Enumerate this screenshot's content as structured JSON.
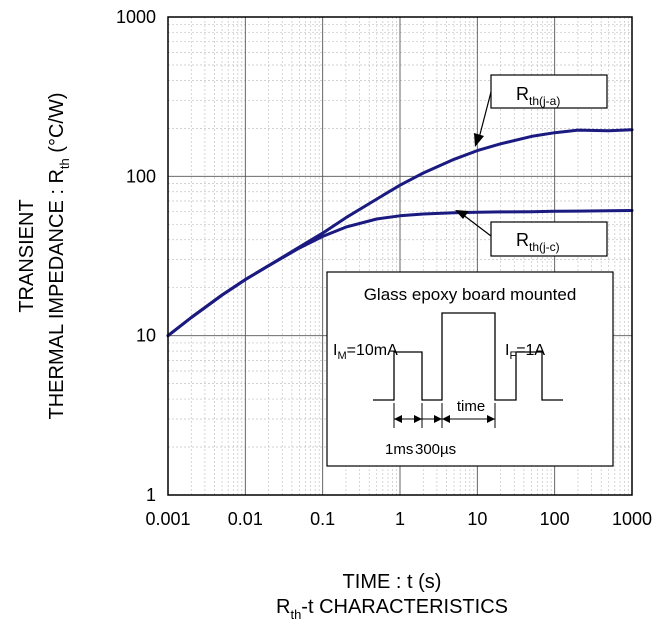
{
  "chart_data": {
    "type": "line",
    "title_main": "R",
    "title_sub": "th",
    "title_rest": "-t CHARACTERISTICS",
    "xlabel": "TIME : t (s)",
    "ylabel_line1": "TRANSIENT",
    "ylabel_line2_main": "THERMAL IMPEDANCE : R",
    "ylabel_line2_sub": "th",
    "ylabel_line2_rest": " (°C/W)",
    "x_scale": "log",
    "y_scale": "log",
    "xlim": [
      0.001,
      1000
    ],
    "ylim": [
      1,
      1000
    ],
    "x_ticks": [
      0.001,
      0.01,
      0.1,
      1,
      10,
      100,
      1000
    ],
    "x_tick_labels": [
      "0.001",
      "0.01",
      "0.1",
      "1",
      "10",
      "100",
      "1000"
    ],
    "y_ticks": [
      1,
      10,
      100,
      1000
    ],
    "y_tick_labels": [
      "1",
      "10",
      "100",
      "1000"
    ],
    "grid": true,
    "line_color": "#1a1a80",
    "series": [
      {
        "name_main": "R",
        "name_sub": "th(j-a)",
        "x": [
          0.001,
          0.002,
          0.005,
          0.01,
          0.02,
          0.05,
          0.1,
          0.2,
          0.5,
          1,
          2,
          5,
          10,
          20,
          50,
          100,
          200,
          500,
          1000
        ],
        "y": [
          10,
          13,
          18,
          22.5,
          27.5,
          36,
          44,
          55,
          72,
          88,
          105,
          128,
          145,
          160,
          178,
          188,
          195,
          193,
          196
        ]
      },
      {
        "name_main": "R",
        "name_sub": "th(j-c)",
        "x": [
          0.001,
          0.002,
          0.005,
          0.01,
          0.02,
          0.05,
          0.1,
          0.2,
          0.5,
          1,
          2,
          5,
          10,
          20,
          50,
          100,
          200,
          500,
          1000
        ],
        "y": [
          10,
          13,
          18,
          22.5,
          27.5,
          35.5,
          42,
          48,
          54,
          56.5,
          58,
          59,
          59.5,
          59.8,
          60,
          60.3,
          60.5,
          60.8,
          61
        ]
      }
    ],
    "inset": {
      "title": "Glass epoxy board mounted",
      "im_main": "I",
      "im_sub": "M",
      "im_rest": "=10mA",
      "if_main": "I",
      "if_sub": "F",
      "if_rest": "=1A",
      "time_label": "time",
      "pulse_width_label": "1ms",
      "gap_label": "300µs"
    }
  }
}
